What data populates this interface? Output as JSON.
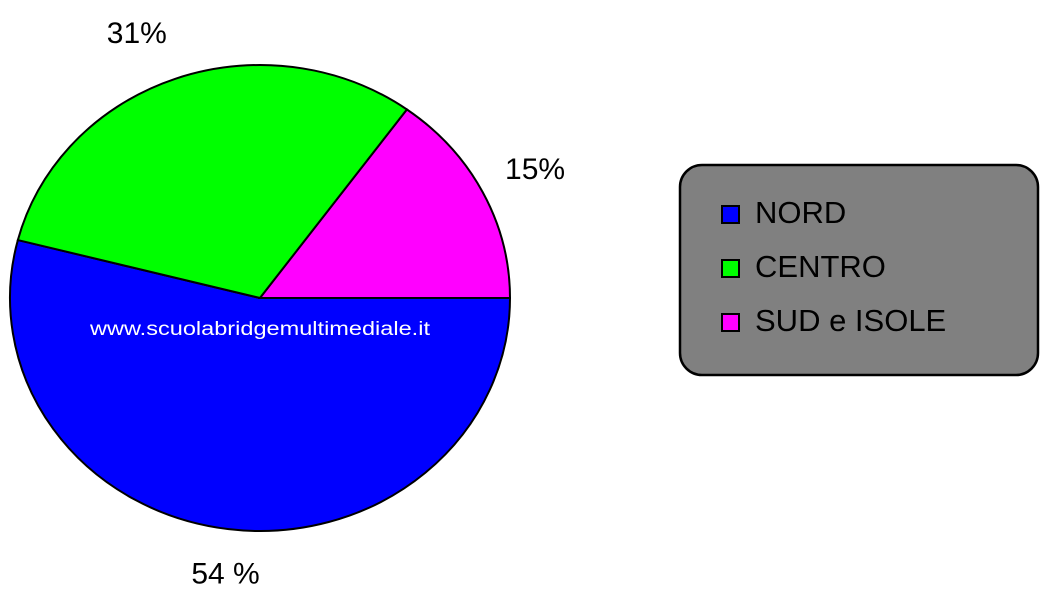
{
  "chart_data": {
    "type": "pie",
    "categories": [
      "NORD",
      "CENTRO",
      "SUD e ISOLE"
    ],
    "values": [
      54,
      31,
      15
    ],
    "value_labels": [
      "54 %",
      "31%",
      "15%"
    ],
    "colors": [
      "#0000ff",
      "#00ff00",
      "#ff00ff"
    ],
    "watermark": "www.scuolabridgemultimediale.it",
    "legend": "right"
  }
}
